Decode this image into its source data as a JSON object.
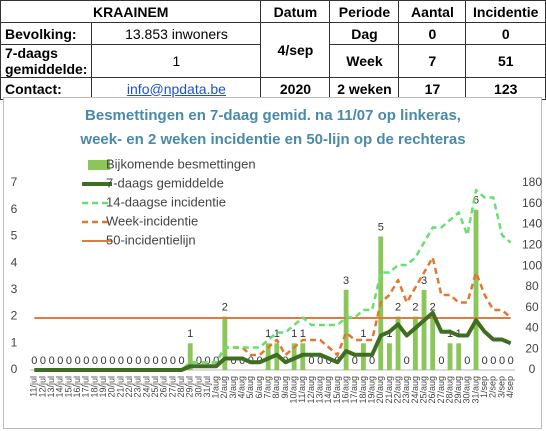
{
  "table": {
    "rows": [
      [
        "KRAAINEM",
        "Datum",
        "Periode",
        "Aantal",
        "Incidentie"
      ],
      [
        "Bevolking:",
        "13.853 inwoners",
        "4/sep",
        "Dag",
        "0",
        "0"
      ],
      [
        "7-daags gemiddelde:",
        "1",
        "Week",
        "7",
        "51"
      ],
      [
        "Contact:",
        "info@npdata.be",
        "2020",
        "2 weken",
        "17",
        "123"
      ]
    ]
  },
  "chart_data": {
    "type": "bar",
    "title": [
      "Besmettingen en 7-daag gemid. na 11/07 op linkeras,",
      "week- en 2 weken incidentie en 50-lijn op de  rechteras"
    ],
    "categories": [
      "11/jul",
      "12/jul",
      "13/jul",
      "14/jul",
      "15/jul",
      "16/jul",
      "17/jul",
      "18/jul",
      "19/jul",
      "20/jul",
      "21/jul",
      "22/jul",
      "23/jul",
      "24/jul",
      "25/jul",
      "26/jul",
      "27/jul",
      "28/jul",
      "29/jul",
      "30/jul",
      "31/jul",
      "1/aug",
      "2/aug",
      "3/aug",
      "4/aug",
      "5/aug",
      "6/aug",
      "7/aug",
      "8/aug",
      "9/aug",
      "10/aug",
      "11/aug",
      "12/aug",
      "13/aug",
      "14/aug",
      "15/aug",
      "16/aug",
      "17/aug",
      "18/aug",
      "19/aug",
      "20/aug",
      "21/aug",
      "22/aug",
      "23/aug",
      "24/aug",
      "25/aug",
      "26/aug",
      "27/aug",
      "28/aug",
      "29/aug",
      "30/aug",
      "31/aug",
      "1/sep",
      "2/sep",
      "3/sep",
      "4/sep"
    ],
    "series": [
      {
        "name": "Bijkomende besmettingen",
        "type": "bar",
        "color": "#8cc65a",
        "axis": "y",
        "values": [
          0,
          0,
          0,
          0,
          0,
          0,
          0,
          0,
          0,
          0,
          0,
          0,
          0,
          0,
          0,
          0,
          0,
          0,
          1,
          0,
          0,
          0,
          2,
          0,
          0,
          0,
          0,
          1,
          1,
          0,
          1,
          1,
          0,
          0,
          0,
          0,
          3,
          0,
          1,
          0,
          5,
          1,
          2,
          0,
          2,
          3,
          2,
          0,
          1,
          1,
          0,
          6,
          0,
          0,
          0,
          0
        ]
      },
      {
        "name": "7-daags gemiddelde",
        "type": "line",
        "color": "#3f6d22",
        "axis": "y",
        "values": [
          0,
          0,
          0,
          0,
          0,
          0,
          0,
          0,
          0,
          0,
          0,
          0,
          0,
          0,
          0,
          0,
          0,
          0,
          0.14,
          0.14,
          0.14,
          0.14,
          0.43,
          0.43,
          0.43,
          0.29,
          0.29,
          0.43,
          0.57,
          0.29,
          0.43,
          0.57,
          0.57,
          0.57,
          0.43,
          0.29,
          0.71,
          0.57,
          0.57,
          0.57,
          1.29,
          1.43,
          1.71,
          1.29,
          1.57,
          1.86,
          2.14,
          1.43,
          1.43,
          1.29,
          1.29,
          1.86,
          1.43,
          1.14,
          1.14,
          1
        ]
      },
      {
        "name": "14-daagse incidentie",
        "type": "dashed",
        "color": "#66e06e",
        "axis": "y2",
        "values": [
          0,
          0,
          0,
          0,
          0,
          0,
          0,
          0,
          0,
          0,
          0,
          0,
          0,
          0,
          0,
          0,
          0,
          0,
          7.2,
          7.2,
          7.2,
          7.2,
          21.7,
          21.7,
          21.7,
          21.7,
          21.7,
          28.9,
          36.1,
          36.1,
          43.3,
          50.5,
          43.3,
          43.3,
          43.3,
          43.3,
          50.5,
          50.5,
          57.7,
          57.7,
          93.8,
          93.8,
          101.1,
          101.1,
          108.3,
          122.7,
          137.2,
          137.2,
          144.4,
          151.6,
          129.9,
          173.2,
          166,
          166,
          129.9,
          122.7
        ]
      },
      {
        "name": "Week-incidentie",
        "type": "dashed",
        "color": "#e2782f",
        "axis": "y2",
        "values": [
          0,
          0,
          0,
          0,
          0,
          0,
          0,
          0,
          0,
          0,
          0,
          0,
          0,
          0,
          0,
          0,
          0,
          0,
          7.2,
          7.2,
          7.2,
          7.2,
          21.7,
          21.7,
          21.7,
          14.4,
          14.4,
          21.7,
          28.9,
          14.4,
          21.7,
          28.9,
          28.9,
          28.9,
          21.7,
          14.4,
          36.1,
          28.9,
          28.9,
          28.9,
          65,
          72.2,
          86.6,
          65,
          79.4,
          93.8,
          108.3,
          72.2,
          72.2,
          65,
          65,
          93.8,
          72.2,
          57.7,
          57.7,
          50.5
        ]
      },
      {
        "name": "50-incidentielijn",
        "type": "line",
        "color": "#e07b39",
        "axis": "y2",
        "values": [
          50,
          50,
          50,
          50,
          50,
          50,
          50,
          50,
          50,
          50,
          50,
          50,
          50,
          50,
          50,
          50,
          50,
          50,
          50,
          50,
          50,
          50,
          50,
          50,
          50,
          50,
          50,
          50,
          50,
          50,
          50,
          50,
          50,
          50,
          50,
          50,
          50,
          50,
          50,
          50,
          50,
          50,
          50,
          50,
          50,
          50,
          50,
          50,
          50,
          50,
          50,
          50,
          50,
          50,
          50,
          50
        ]
      }
    ],
    "ylim": [
      0,
      7
    ],
    "yticks": [
      0,
      1,
      2,
      3,
      4,
      5,
      6,
      7
    ],
    "y2lim": [
      0,
      180
    ],
    "y2ticks": [
      0,
      20,
      40,
      60,
      80,
      100,
      120,
      140,
      160,
      180
    ],
    "grid": false,
    "legend": "top-left"
  }
}
